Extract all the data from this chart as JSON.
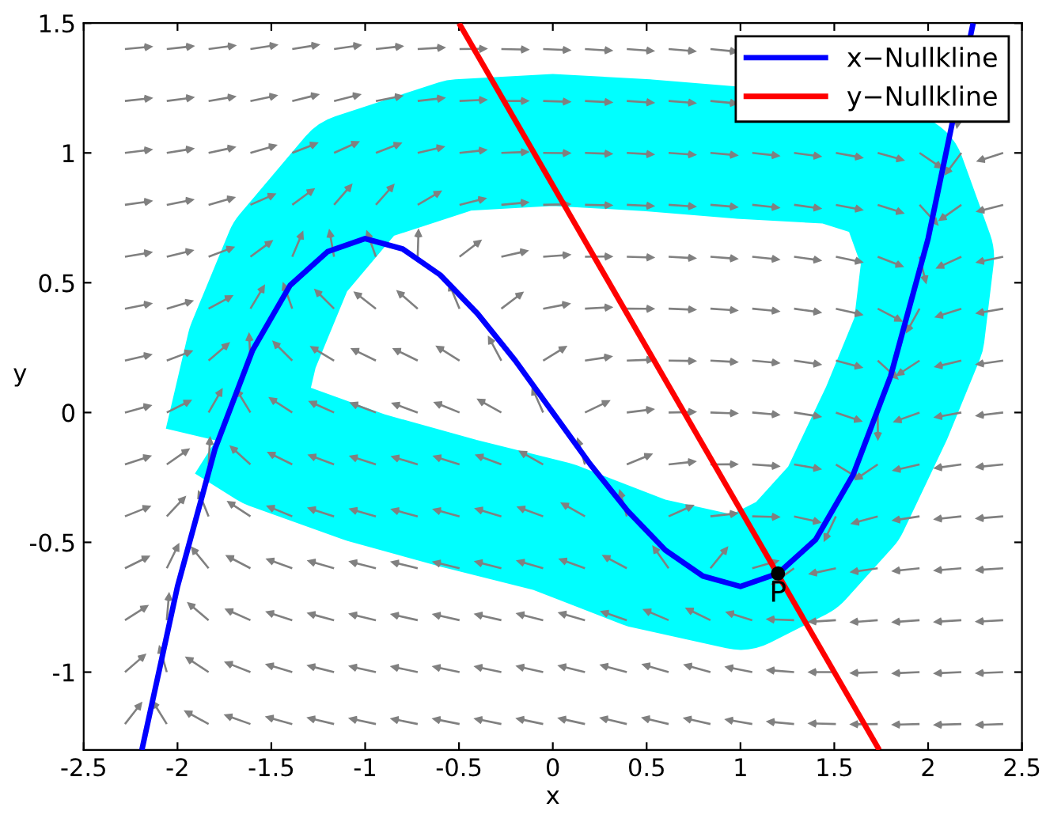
{
  "chart_data": {
    "type": "line",
    "xlabel": "x",
    "ylabel": "y",
    "xlim": [
      -2.5,
      2.5
    ],
    "ylim": [
      -1.3,
      1.5
    ],
    "xticks": [
      -2.5,
      -2,
      -1.5,
      -1,
      -0.5,
      0,
      0.5,
      1,
      1.5,
      2,
      2.5
    ],
    "yticks": [
      -1,
      -0.5,
      0,
      0.5,
      1,
      1.5
    ],
    "grid": false,
    "legend": "top right",
    "marker": "none",
    "line_style": "solid",
    "series": [
      {
        "color": "#00ffff",
        "x": [
          -1.72,
          -1.6,
          -1.4,
          -1.05,
          -0.5,
          0,
          0.5,
          1.0,
          1.5,
          1.85,
          2.0,
          1.95,
          1.78,
          1.55,
          1.3,
          1.0,
          0.5,
          0,
          -0.5,
          -1.0,
          -1.5,
          -1.72
        ],
        "values": [
          -0.12,
          0.25,
          0.6,
          0.9,
          1.03,
          1.05,
          1.03,
          1.0,
          0.98,
          0.9,
          0.6,
          0.3,
          0,
          -0.35,
          -0.55,
          -0.66,
          -0.58,
          -0.44,
          -0.35,
          -0.25,
          -0.12,
          -0.02
        ]
      },
      {
        "name": "x−Nullkline",
        "color": "#0000ff",
        "x": [
          -2.19,
          -2.0,
          -1.8,
          -1.6,
          -1.4,
          -1.2,
          -1.0,
          -0.8,
          -0.6,
          -0.4,
          -0.2,
          0,
          0.2,
          0.4,
          0.6,
          0.8,
          1.0,
          1.2,
          1.4,
          1.6,
          1.8,
          2.0,
          2.24
        ],
        "values": [
          -1.3,
          -0.67,
          -0.14,
          0.24,
          0.49,
          0.62,
          0.67,
          0.63,
          0.53,
          0.38,
          0.2,
          0,
          -0.2,
          -0.38,
          -0.53,
          -0.63,
          -0.67,
          -0.62,
          -0.49,
          -0.24,
          0.14,
          0.67,
          1.5
        ]
      },
      {
        "name": "y−Nullkline",
        "color": "#ff0000",
        "x": [
          -0.5,
          1.74
        ],
        "values": [
          1.5,
          -1.3
        ]
      },
      {
        "type": "scatter",
        "color": "#000000",
        "marker": "circle",
        "x": [
          1.2
        ],
        "values": [
          -0.62
        ]
      }
    ],
    "annotations": [
      {
        "text": "P",
        "x": 1.2,
        "y": -0.62
      }
    ]
  }
}
